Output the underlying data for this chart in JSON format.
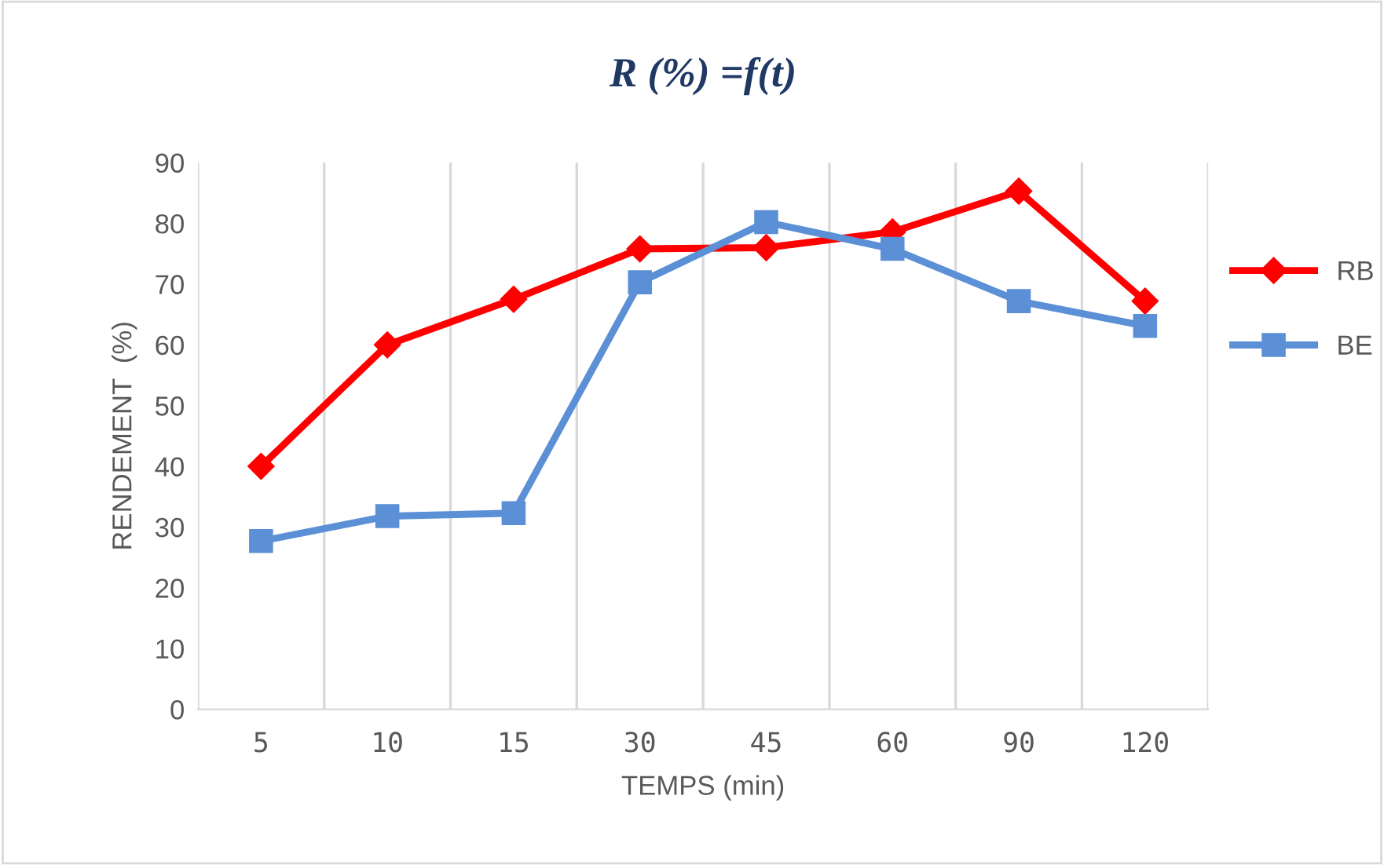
{
  "chart_data": {
    "type": "line",
    "title": "R (%) =f(t)",
    "xlabel": "TEMPS (min)",
    "ylabel": "RENDEMENT  (%)",
    "categories": [
      "5",
      "10",
      "15",
      "30",
      "45",
      "60",
      "90",
      "120"
    ],
    "series": [
      {
        "name": "RB",
        "color": "#ff0000",
        "marker": "diamond",
        "values": [
          40,
          60,
          67.5,
          75.8,
          76,
          78.6,
          85.3,
          67.2
        ]
      },
      {
        "name": "BE",
        "color": "#5b8fd6",
        "marker": "square",
        "values": [
          27.7,
          31.8,
          32.3,
          70.3,
          80.2,
          75.8,
          67.2,
          63.1
        ]
      }
    ],
    "ylim": [
      0,
      90
    ],
    "yticks": [
      0,
      10,
      20,
      30,
      40,
      50,
      60,
      70,
      80,
      90
    ],
    "grid": "x",
    "legend": "right",
    "line_style": "solid"
  }
}
